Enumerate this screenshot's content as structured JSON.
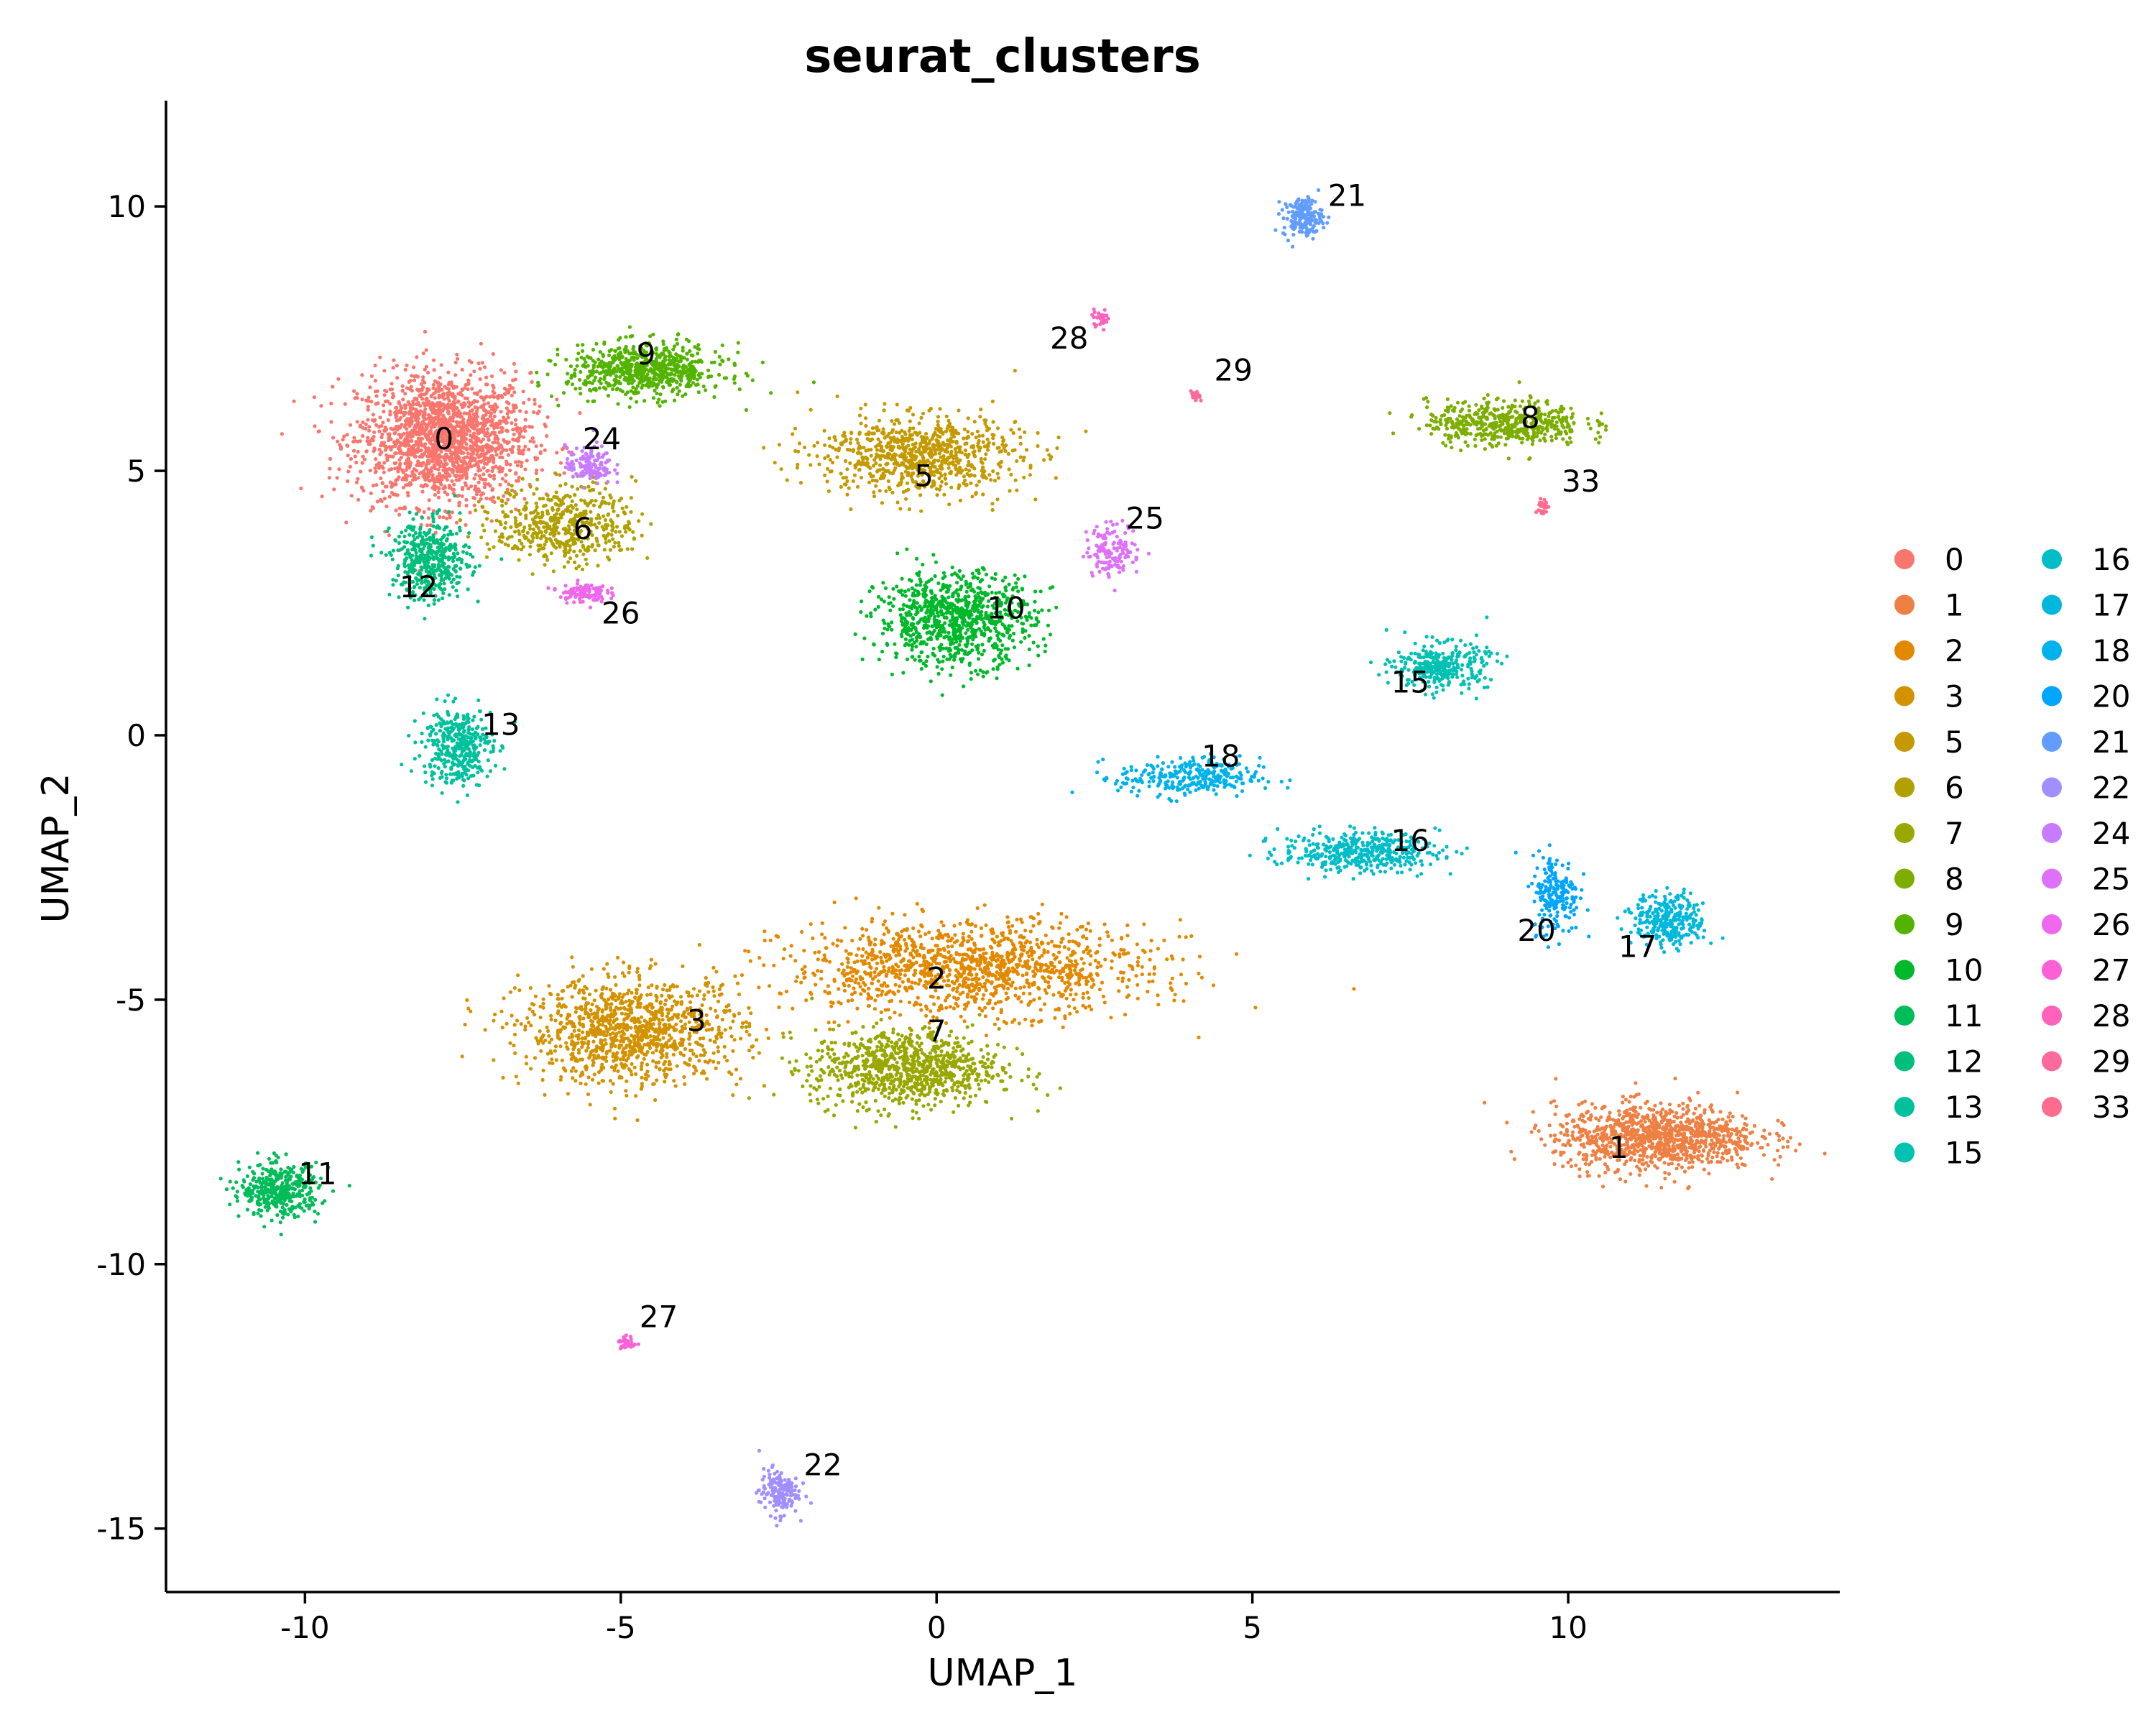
{
  "chart_data": {
    "type": "scatter",
    "title": "seurat_clusters",
    "xlabel": "UMAP_1",
    "ylabel": "UMAP_2",
    "xlim": [
      -12.2,
      14.3
    ],
    "ylim": [
      -16.2,
      12.0
    ],
    "xticks": [
      -10,
      -5,
      0,
      5,
      10
    ],
    "yticks": [
      -15,
      -10,
      -5,
      0,
      5,
      10
    ],
    "xtick_labels": [
      "-10",
      "-5",
      "0",
      "5",
      "10"
    ],
    "ytick_labels": [
      "-15",
      "-10",
      "-5",
      "0",
      "5",
      "10"
    ],
    "grid": false,
    "legend_position": "right",
    "legend_columns": 2,
    "clusters": [
      {
        "id": "0",
        "color": "#F8766D",
        "center": [
          -7.8,
          5.6
        ],
        "spread": [
          1.1,
          1.0
        ],
        "n": 1800,
        "label_pos": [
          -7.8,
          5.6
        ]
      },
      {
        "id": "1",
        "color": "#EE8044",
        "center": [
          11.4,
          -7.6
        ],
        "spread": [
          1.3,
          0.5
        ],
        "n": 1100,
        "label_pos": [
          10.8,
          -7.8
        ]
      },
      {
        "id": "2",
        "color": "#E38900",
        "center": [
          0.5,
          -4.4
        ],
        "spread": [
          2.3,
          0.7
        ],
        "n": 1300,
        "label_pos": [
          0.0,
          -4.6
        ]
      },
      {
        "id": "3",
        "color": "#D39200",
        "center": [
          -4.8,
          -5.6
        ],
        "spread": [
          1.4,
          0.8
        ],
        "n": 1100,
        "label_pos": [
          -3.8,
          -5.4
        ]
      },
      {
        "id": "5",
        "color": "#C49A00",
        "center": [
          -0.3,
          5.3
        ],
        "spread": [
          1.3,
          0.6
        ],
        "n": 800,
        "label_pos": [
          -0.2,
          4.9
        ]
      },
      {
        "id": "6",
        "color": "#B0A100",
        "center": [
          -5.9,
          4.0
        ],
        "spread": [
          0.9,
          0.6
        ],
        "n": 500,
        "label_pos": [
          -5.6,
          3.9
        ]
      },
      {
        "id": "7",
        "color": "#99A800",
        "center": [
          -0.5,
          -6.3
        ],
        "spread": [
          1.2,
          0.6
        ],
        "n": 900,
        "label_pos": [
          0.0,
          -5.6
        ]
      },
      {
        "id": "8",
        "color": "#7CAE00",
        "center": [
          9.0,
          5.9
        ],
        "spread": [
          1.0,
          0.35
        ],
        "n": 500,
        "label_pos": [
          9.4,
          6.0
        ]
      },
      {
        "id": "9",
        "color": "#53B400",
        "center": [
          -4.6,
          6.9
        ],
        "spread": [
          1.0,
          0.4
        ],
        "n": 700,
        "label_pos": [
          -4.6,
          7.2
        ]
      },
      {
        "id": "10",
        "color": "#00B92A",
        "center": [
          0.3,
          2.2
        ],
        "spread": [
          1.0,
          0.7
        ],
        "n": 900,
        "label_pos": [
          1.1,
          2.4
        ]
      },
      {
        "id": "11",
        "color": "#00BC59",
        "center": [
          -10.4,
          -8.6
        ],
        "spread": [
          0.5,
          0.4
        ],
        "n": 400,
        "label_pos": [
          -9.8,
          -8.3
        ]
      },
      {
        "id": "12",
        "color": "#00BF7D",
        "center": [
          -8.0,
          3.3
        ],
        "spread": [
          0.5,
          0.6
        ],
        "n": 450,
        "label_pos": [
          -8.2,
          2.8
        ]
      },
      {
        "id": "13",
        "color": "#00C19C",
        "center": [
          -7.6,
          -0.2
        ],
        "spread": [
          0.45,
          0.6
        ],
        "n": 380,
        "label_pos": [
          -6.9,
          0.2
        ]
      },
      {
        "id": "15",
        "color": "#00C1B2",
        "center": [
          8.0,
          1.3
        ],
        "spread": [
          0.6,
          0.35
        ],
        "n": 330,
        "label_pos": [
          7.5,
          1.0
        ]
      },
      {
        "id": "16",
        "color": "#00BDC8",
        "center": [
          6.7,
          -2.2
        ],
        "spread": [
          1.0,
          0.3
        ],
        "n": 420,
        "label_pos": [
          7.5,
          -2.0
        ]
      },
      {
        "id": "17",
        "color": "#00B8DB",
        "center": [
          11.6,
          -3.5
        ],
        "spread": [
          0.45,
          0.4
        ],
        "n": 300,
        "label_pos": [
          11.1,
          -4.0
        ]
      },
      {
        "id": "18",
        "color": "#00B2EB",
        "center": [
          4.0,
          -0.8
        ],
        "spread": [
          0.9,
          0.3
        ],
        "n": 300,
        "label_pos": [
          4.5,
          -0.4
        ]
      },
      {
        "id": "20",
        "color": "#00A5FF",
        "center": [
          9.8,
          -3.0
        ],
        "spread": [
          0.3,
          0.6
        ],
        "n": 200,
        "label_pos": [
          9.5,
          -3.7
        ]
      },
      {
        "id": "21",
        "color": "#619CFF",
        "center": [
          5.8,
          9.8
        ],
        "spread": [
          0.25,
          0.3
        ],
        "n": 180,
        "label_pos": [
          6.5,
          10.2
        ]
      },
      {
        "id": "22",
        "color": "#A18FFF",
        "center": [
          -2.5,
          -14.3
        ],
        "spread": [
          0.25,
          0.35
        ],
        "n": 160,
        "label_pos": [
          -1.8,
          -13.8
        ]
      },
      {
        "id": "24",
        "color": "#C77CFF",
        "center": [
          -5.5,
          5.1
        ],
        "spread": [
          0.3,
          0.3
        ],
        "n": 140,
        "label_pos": [
          -5.3,
          5.6
        ]
      },
      {
        "id": "25",
        "color": "#DE71F9",
        "center": [
          2.8,
          3.5
        ],
        "spread": [
          0.35,
          0.4
        ],
        "n": 140,
        "label_pos": [
          3.3,
          4.1
        ]
      },
      {
        "id": "26",
        "color": "#EF67EB",
        "center": [
          -5.6,
          2.7
        ],
        "spread": [
          0.3,
          0.15
        ],
        "n": 110,
        "label_pos": [
          -5.0,
          2.3
        ]
      },
      {
        "id": "27",
        "color": "#FB61D7",
        "center": [
          -4.9,
          -11.5
        ],
        "spread": [
          0.12,
          0.12
        ],
        "n": 30,
        "label_pos": [
          -4.4,
          -11.0
        ]
      },
      {
        "id": "28",
        "color": "#FF62BC",
        "center": [
          2.6,
          7.9
        ],
        "spread": [
          0.12,
          0.12
        ],
        "n": 30,
        "label_pos": [
          2.1,
          7.5
        ]
      },
      {
        "id": "29",
        "color": "#FF699C",
        "center": [
          4.1,
          6.4
        ],
        "spread": [
          0.06,
          0.08
        ],
        "n": 25,
        "label_pos": [
          4.7,
          6.9
        ]
      },
      {
        "id": "33",
        "color": "#FF6C90",
        "center": [
          9.6,
          4.3
        ],
        "spread": [
          0.06,
          0.15
        ],
        "n": 25,
        "label_pos": [
          10.2,
          4.8
        ]
      }
    ]
  }
}
